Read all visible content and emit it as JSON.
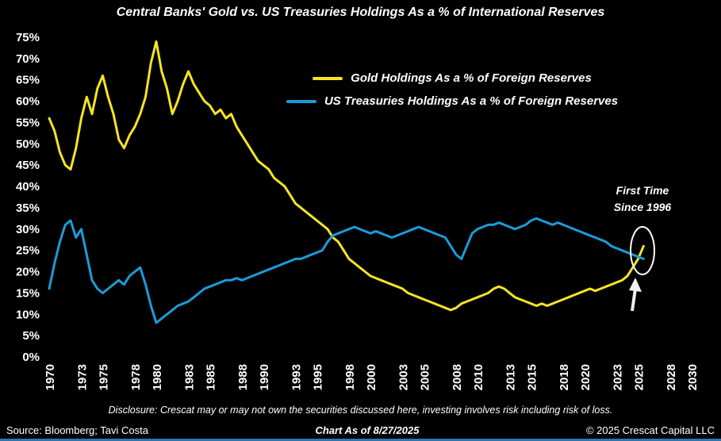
{
  "title": "Central Banks' Gold vs. US Treasuries Holdings As a % of International Reserves",
  "legend": [
    {
      "label": "Gold Holdings As a % of Foreign Reserves",
      "color": "#f5e425"
    },
    {
      "label": "US Treasuries Holdings As a % of Foreign Reserves",
      "color": "#1d9bd8"
    }
  ],
  "annotation": {
    "line1": "First Time",
    "line2": "Since 1996"
  },
  "footer": {
    "disclosure": "Disclosure: Crescat may or may not own the securities discussed here, investing involves risk including risk of loss.",
    "source": "Source: Bloomberg; Tavi Costa",
    "as_of": "Chart As of 8/27/2025",
    "copyright": "© 2025 Crescat Capital LLC"
  },
  "colors": {
    "background": "#000000",
    "text": "#ffffff",
    "gold": "#f5e425",
    "treasuries_blue": "#1d9bd8",
    "footer_bar_blue": "#2e74b5",
    "highlight": "#ffffff"
  },
  "chart_data": {
    "type": "line",
    "title": "Central Banks' Gold vs. US Treasuries Holdings As a % of International Reserves",
    "xlabel": "",
    "ylabel": "",
    "xlim": [
      1970,
      2030
    ],
    "ylim": [
      0,
      75
    ],
    "grid": false,
    "legend_position": "upper center inside plot",
    "y_tick_values": [
      0,
      5,
      10,
      15,
      20,
      25,
      30,
      35,
      40,
      45,
      50,
      55,
      60,
      65,
      70,
      75
    ],
    "y_tick_labels": [
      "0%",
      "5%",
      "10%",
      "15%",
      "20%",
      "25%",
      "30%",
      "35%",
      "40%",
      "45%",
      "50%",
      "55%",
      "60%",
      "65%",
      "70%",
      "75%"
    ],
    "x_ticks": [
      1970,
      1973,
      1975,
      1978,
      1980,
      1983,
      1985,
      1988,
      1990,
      1993,
      1995,
      1998,
      2000,
      2003,
      2005,
      2008,
      2010,
      2013,
      2015,
      2018,
      2020,
      2023,
      2025,
      2028,
      2030
    ],
    "x_encoding": {
      "start": 1970,
      "step": 0.5,
      "unit": "year"
    },
    "series": [
      {
        "id": "gold",
        "name": "Gold Holdings As a % of Foreign Reserves",
        "color": "#f5e425",
        "values": [
          56,
          53,
          48,
          45,
          44,
          49,
          56,
          61,
          57,
          63,
          66,
          61,
          57,
          51,
          49,
          52,
          54,
          57,
          61,
          69,
          74,
          67,
          63,
          57,
          60,
          64,
          67,
          64,
          62,
          60,
          59,
          57,
          58,
          56,
          57,
          54,
          52,
          50,
          48,
          46,
          45,
          44,
          42,
          41,
          40,
          38,
          36,
          35,
          34,
          33,
          32,
          31,
          30,
          28,
          27,
          25,
          23,
          22,
          21,
          20,
          19,
          18.5,
          18,
          17.5,
          17,
          16.5,
          16,
          15,
          14.5,
          14,
          13.5,
          13,
          12.5,
          12,
          11.5,
          11,
          11.5,
          12.5,
          13,
          13.5,
          14,
          14.5,
          15,
          16,
          16.5,
          16,
          15,
          14,
          13.5,
          13,
          12.5,
          12,
          12.5,
          12,
          12.5,
          13,
          13.5,
          14,
          14.5,
          15,
          15.5,
          16,
          15.5,
          16,
          16.5,
          17,
          17.5,
          18,
          19,
          21,
          23,
          26
        ]
      },
      {
        "id": "treasuries",
        "name": "US Treasuries Holdings As a % of Foreign Reserves",
        "color": "#1d9bd8",
        "values": [
          16,
          22,
          27,
          31,
          32,
          28,
          30,
          24,
          18,
          16,
          15,
          16,
          17,
          18,
          17,
          19,
          20,
          21,
          17,
          12,
          8,
          9,
          10,
          11,
          12,
          12.5,
          13,
          14,
          15,
          16,
          16.5,
          17,
          17.5,
          18,
          18,
          18.5,
          18,
          18.5,
          19,
          19.5,
          20,
          20.5,
          21,
          21.5,
          22,
          22.5,
          23,
          23,
          23.5,
          24,
          24.5,
          25,
          27,
          28.5,
          29,
          29.5,
          30,
          30.5,
          30,
          29.5,
          29,
          29.5,
          29,
          28.5,
          28,
          28.5,
          29,
          29.5,
          30,
          30.5,
          30,
          29.5,
          29,
          28.5,
          28,
          26,
          24,
          23,
          26,
          29,
          30,
          30.5,
          31,
          31,
          31.5,
          31,
          30.5,
          30,
          30.5,
          31,
          32,
          32.5,
          32,
          31.5,
          31,
          31.5,
          31,
          30.5,
          30,
          29.5,
          29,
          28.5,
          28,
          27.5,
          27,
          26,
          25.5,
          25,
          24.5,
          24,
          23.5,
          23
        ]
      }
    ],
    "annotations": [
      {
        "text": "First Time Since 1996",
        "x": 2025.5,
        "y": 24.5,
        "marker": "ellipse + up arrow"
      }
    ]
  }
}
